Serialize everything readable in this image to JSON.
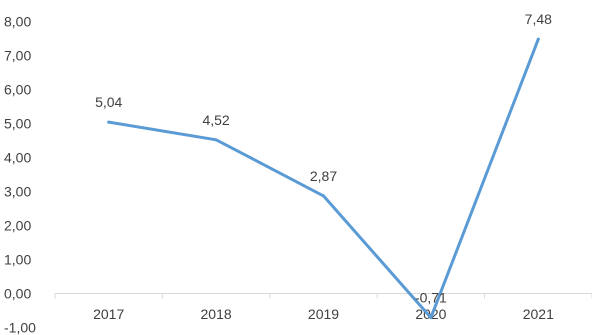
{
  "chart_data": {
    "type": "line",
    "categories": [
      "2017",
      "2018",
      "2019",
      "2020",
      "2021"
    ],
    "series": [
      {
        "values": [
          5.04,
          4.52,
          2.87,
          -0.71,
          7.48
        ],
        "data_labels": [
          "5,04",
          "4,52",
          "2,87",
          "-0,71",
          "7,48"
        ],
        "color": "#5B9BD5"
      }
    ],
    "y_tick_labels": [
      "-1,00",
      "0,00",
      "1,00",
      "2,00",
      "3,00",
      "4,00",
      "5,00",
      "6,00",
      "7,00",
      "8,00"
    ],
    "y_ticks": [
      -1,
      0,
      1,
      2,
      3,
      4,
      5,
      6,
      7,
      8
    ],
    "ylim": [
      -1,
      8
    ],
    "grid": false,
    "axis_color": "#D9D9D9",
    "text_color": "#404040"
  }
}
